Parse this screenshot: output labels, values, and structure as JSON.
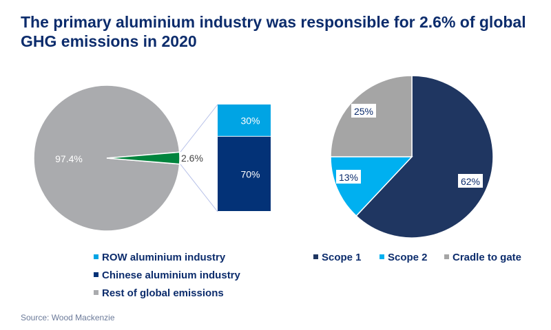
{
  "title": "The primary aluminium industry was responsible for 2.6% of global GHG emissions in 2020",
  "source": "Source: Wood Mackenzie",
  "chart_data": [
    {
      "type": "pie",
      "slices": [
        {
          "name": "Rest of global emissions",
          "value": 97.4,
          "label": "97.4%",
          "color": "#aaabae"
        },
        {
          "name": "Aluminium industry",
          "value": 2.6,
          "label": "2.6%",
          "color": "#00843d"
        }
      ],
      "breakdown": {
        "type": "stacked-bar",
        "segments": [
          {
            "name": "ROW aluminium industry",
            "value": 30,
            "label": "30%",
            "color": "#00a4e4"
          },
          {
            "name": "Chinese aluminium industry",
            "value": 70,
            "label": "70%",
            "color": "#033277"
          }
        ]
      },
      "legend": [
        "ROW aluminium industry",
        "Chinese aluminium industry",
        "Rest of global emissions"
      ],
      "legend_colors": [
        "#00a4e4",
        "#033277",
        "#aaabae"
      ],
      "legend_placement": "bottom"
    },
    {
      "type": "pie",
      "slices": [
        {
          "name": "Scope 1",
          "value": 62,
          "label": "62%",
          "color": "#1f3661"
        },
        {
          "name": "Scope 2",
          "value": 13,
          "label": "13%",
          "color": "#00b0f0"
        },
        {
          "name": "Cradle to gate",
          "value": 25,
          "label": "25%",
          "color": "#a5a5a5"
        }
      ],
      "legend_placement": "bottom"
    }
  ]
}
